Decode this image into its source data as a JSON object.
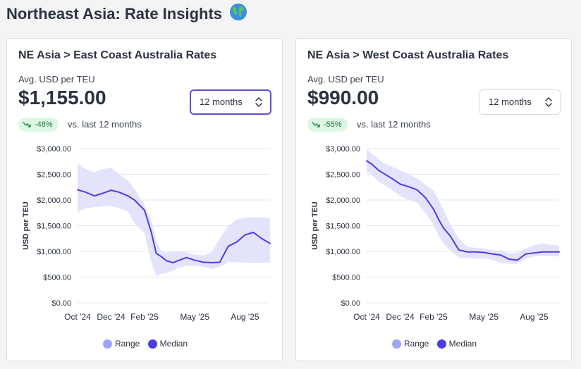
{
  "page": {
    "title": "Northeast Asia: Rate Insights",
    "title_icon": "globe-icon"
  },
  "colors": {
    "range_fill": "#e3e3fb",
    "range_legend": "#a3a3f5",
    "median": "#4b3ee0",
    "grid": "#e5e7eb",
    "badge_bg": "#dcf7e4",
    "badge_text": "#1f7a43"
  },
  "cards": [
    {
      "title": "NE Asia > East Coast Australia Rates",
      "metric_label": "Avg. USD per TEU",
      "metric_value": "$1,155.00",
      "period": "12 months",
      "delta": "-48%",
      "delta_caption": "vs. last 12 months"
    },
    {
      "title": "NE Asia > West Coast Australia Rates",
      "metric_label": "Avg. USD per TEU",
      "metric_value": "$990.00",
      "period": "12 months",
      "delta": "-55%",
      "delta_caption": "vs. last 12 months"
    }
  ],
  "legend": {
    "range": "Range",
    "median": "Median"
  },
  "chart_data": [
    {
      "type": "area",
      "ylabel": "USD per TEU",
      "ylim": [
        0,
        3000
      ],
      "yticks": [
        "$0.00",
        "$500.00",
        "$1,000.00",
        "$1,500.00",
        "$2,000.00",
        "$2,500.00",
        "$3,000.00"
      ],
      "x_tick_labels": [
        "Oct '24",
        "Dec '24",
        "Feb '25",
        "May '25",
        "Aug '25"
      ],
      "x_tick_months": [
        0,
        2,
        4,
        7,
        10
      ],
      "grid": true,
      "legend_position": "bottom",
      "x_months": [
        0,
        0.5,
        1,
        1.5,
        2,
        2.5,
        3,
        3.4,
        4,
        4.4,
        4.7,
        5,
        5.3,
        5.7,
        6,
        6.5,
        7,
        7.5,
        8,
        8.5,
        9,
        9.5,
        10,
        10.5,
        11,
        11.5
      ],
      "median": [
        2200,
        2150,
        2080,
        2130,
        2190,
        2150,
        2080,
        2000,
        1800,
        1380,
        960,
        900,
        820,
        780,
        820,
        880,
        830,
        790,
        780,
        790,
        1100,
        1180,
        1320,
        1370,
        1250,
        1155
      ],
      "range_high": [
        2720,
        2600,
        2540,
        2600,
        2630,
        2500,
        2380,
        2220,
        1900,
        1620,
        1200,
        1000,
        980,
        990,
        1010,
        980,
        940,
        920,
        980,
        1250,
        1500,
        1620,
        1660,
        1660,
        1660,
        1660
      ],
      "range_low": [
        1760,
        1840,
        1860,
        1880,
        1880,
        1840,
        1780,
        1550,
        1350,
        800,
        520,
        560,
        580,
        620,
        680,
        720,
        720,
        700,
        660,
        700,
        790,
        790,
        780,
        780,
        780,
        780
      ]
    },
    {
      "type": "area",
      "ylabel": "USD per TEU",
      "ylim": [
        0,
        3000
      ],
      "yticks": [
        "$0.00",
        "$500.00",
        "$1,000.00",
        "$1,500.00",
        "$2,000.00",
        "$2,500.00",
        "$3,000.00"
      ],
      "x_tick_labels": [
        "Oct '24",
        "Dec '24",
        "Feb '25",
        "May '25",
        "Aug '25"
      ],
      "x_tick_months": [
        0,
        2,
        4,
        7,
        10
      ],
      "grid": true,
      "legend_position": "bottom",
      "x_months": [
        0,
        0.3,
        0.7,
        1,
        1.5,
        2,
        2.5,
        3,
        3.5,
        4,
        4.3,
        4.6,
        5,
        5.5,
        6,
        6.5,
        7,
        7.5,
        8,
        8.5,
        9,
        9.5,
        10,
        10.5,
        11,
        11.5
      ],
      "median": [
        2760,
        2700,
        2580,
        2520,
        2420,
        2310,
        2260,
        2200,
        2050,
        1820,
        1620,
        1450,
        1300,
        1030,
        990,
        990,
        980,
        950,
        930,
        850,
        830,
        950,
        970,
        990,
        990,
        990
      ],
      "range_high": [
        3000,
        2900,
        2800,
        2720,
        2650,
        2580,
        2500,
        2420,
        2300,
        2180,
        2000,
        1800,
        1530,
        1250,
        1090,
        1070,
        1060,
        1020,
        1020,
        960,
        980,
        1060,
        1120,
        1150,
        1130,
        1110
      ],
      "range_low": [
        2560,
        2500,
        2360,
        2300,
        2200,
        2080,
        2000,
        1950,
        1750,
        1520,
        1300,
        1150,
        1020,
        880,
        870,
        860,
        860,
        840,
        780,
        760,
        760,
        860,
        900,
        920,
        910,
        900
      ]
    }
  ]
}
